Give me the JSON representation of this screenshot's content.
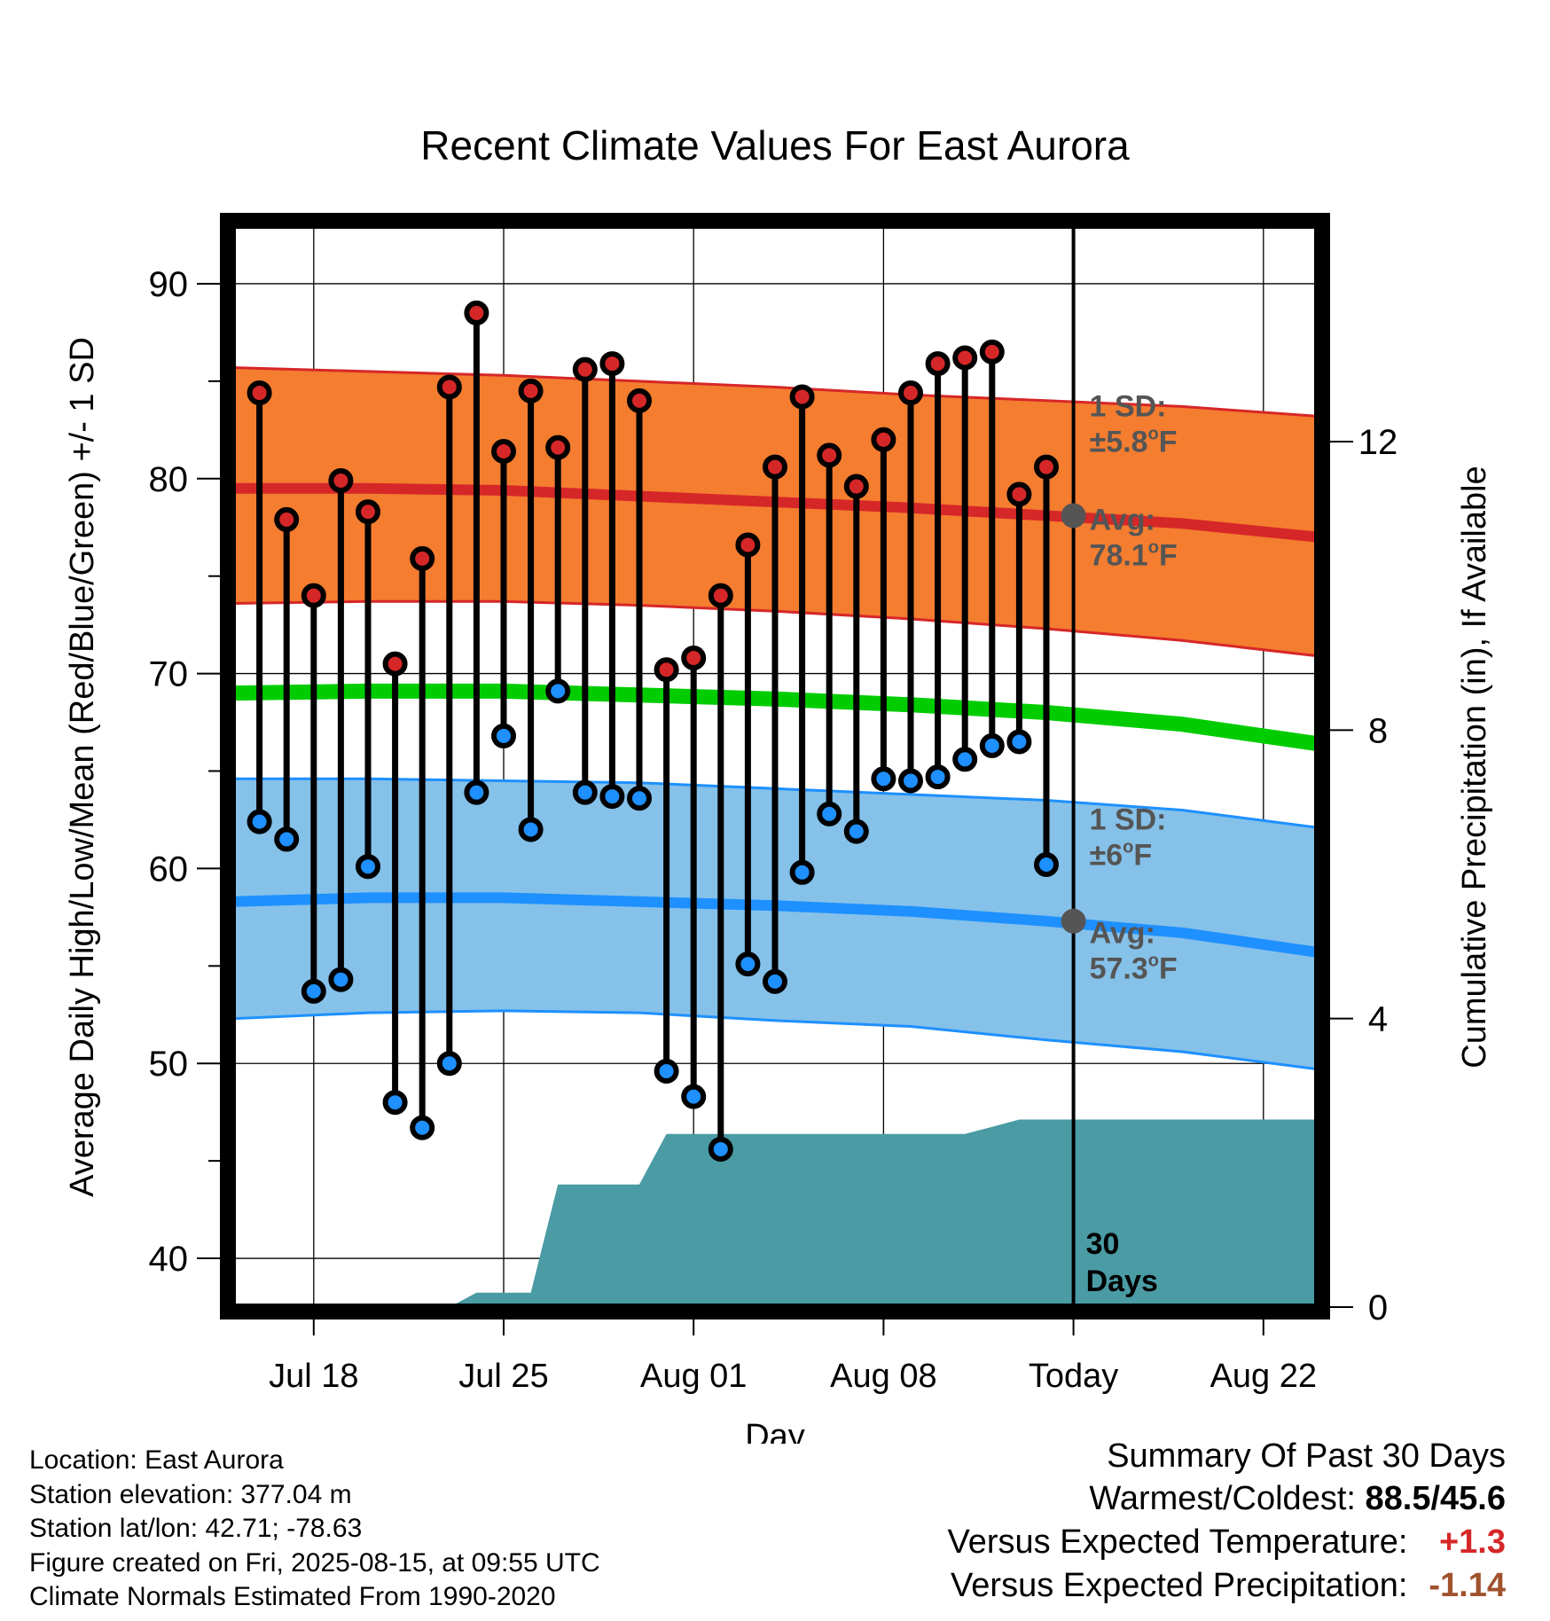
{
  "chart_data": {
    "type": "line",
    "title": "Recent Climate Values For East Aurora",
    "xlabel": "Day",
    "ylabel": "Average Daily High/Low/Mean (Red/Blue/Green) +/- 1 SD",
    "y2label": "Cumulative Precipitation (in), If Available",
    "ylim": [
      37.5,
      93
    ],
    "y2lim": [
      0,
      15
    ],
    "x_ticks": [
      {
        "day": 3,
        "label": "Jul 18"
      },
      {
        "day": 10,
        "label": "Jul 25"
      },
      {
        "day": 17,
        "label": "Aug 01"
      },
      {
        "day": 24,
        "label": "Aug 08"
      },
      {
        "day": 31,
        "label": "Today"
      },
      {
        "day": 38,
        "label": "Aug 22"
      }
    ],
    "x_note": "day 0 = Jul 15",
    "y_ticks": [
      40,
      50,
      60,
      70,
      80,
      90
    ],
    "y2_ticks": [
      0,
      4,
      8,
      12
    ],
    "today_day": 31,
    "days": [
      1,
      2,
      3,
      4,
      5,
      6,
      7,
      8,
      9,
      10,
      11,
      12,
      13,
      14,
      15,
      16,
      17,
      18,
      19,
      20,
      21,
      22,
      23,
      24,
      25,
      26,
      27,
      28,
      29,
      30
    ],
    "daily_high": [
      84.4,
      77.9,
      74.0,
      79.9,
      78.3,
      70.5,
      75.9,
      84.7,
      88.5,
      81.4,
      84.5,
      81.6,
      85.6,
      85.9,
      84.0,
      70.2,
      70.8,
      74.0,
      76.6,
      80.6,
      84.2,
      81.2,
      79.6,
      82.0,
      84.4,
      85.9,
      86.2,
      86.5,
      79.2,
      80.6
    ],
    "daily_low": [
      62.4,
      61.5,
      53.7,
      54.3,
      60.1,
      48.0,
      46.7,
      50.0,
      63.9,
      66.8,
      62.0,
      69.1,
      63.9,
      63.7,
      63.6,
      49.6,
      48.3,
      45.6,
      55.1,
      54.2,
      59.8,
      62.8,
      61.9,
      64.6,
      64.5,
      64.7,
      65.6,
      66.3,
      66.5,
      60.2
    ],
    "normal_high": {
      "days": [
        0,
        5,
        10,
        15,
        20,
        25,
        30,
        35,
        40
      ],
      "mean": [
        79.5,
        79.5,
        79.4,
        79.1,
        78.8,
        78.5,
        78.1,
        77.7,
        77.0
      ],
      "upper": [
        85.7,
        85.5,
        85.3,
        85.0,
        84.7,
        84.3,
        84.0,
        83.7,
        83.2
      ],
      "lower": [
        73.6,
        73.7,
        73.7,
        73.5,
        73.2,
        72.8,
        72.3,
        71.7,
        70.9
      ],
      "sd_label": "1 SD:",
      "sd_value": "±5.8",
      "avg_label": "Avg:",
      "avg_value": "78.1",
      "unit": "F",
      "color": "#d62728",
      "band_color": "#f47d30"
    },
    "normal_mean": {
      "days": [
        0,
        5,
        10,
        15,
        20,
        25,
        30,
        35,
        40
      ],
      "values": [
        69.0,
        69.1,
        69.1,
        68.9,
        68.7,
        68.4,
        68.0,
        67.4,
        66.4
      ],
      "color": "#00cc00"
    },
    "normal_low": {
      "days": [
        0,
        5,
        10,
        15,
        20,
        25,
        30,
        35,
        40
      ],
      "mean": [
        58.3,
        58.5,
        58.5,
        58.3,
        58.1,
        57.8,
        57.3,
        56.7,
        55.7
      ],
      "upper": [
        64.6,
        64.6,
        64.5,
        64.4,
        64.1,
        63.8,
        63.5,
        63.0,
        62.1
      ],
      "lower": [
        52.3,
        52.6,
        52.7,
        52.6,
        52.2,
        51.9,
        51.2,
        50.6,
        49.7
      ],
      "sd_label": "1 SD:",
      "sd_value": "±6",
      "avg_label": "Avg:",
      "avg_value": "57.3",
      "unit": "F",
      "color": "#1e90ff",
      "band_color": "#85c1e9"
    },
    "precip": {
      "days": [
        8,
        9,
        10,
        11,
        12,
        14,
        15,
        16,
        20,
        25,
        26,
        27,
        28,
        29,
        30,
        31,
        40
      ],
      "values": [
        0.0,
        0.2,
        0.2,
        0.2,
        1.7,
        1.7,
        1.7,
        2.4,
        2.4,
        2.4,
        2.4,
        2.4,
        2.5,
        2.6,
        2.6,
        2.6,
        2.6
      ],
      "color": "#4a9ba4",
      "label_line1": "30",
      "label_line2": "Days"
    }
  },
  "station_info": {
    "location": "Location: East Aurora",
    "elevation": "Station elevation: 377.04 m",
    "latlon": "Station lat/lon: 42.71; -78.63",
    "created": "Figure created on Fri, 2025-08-15, at 09:55 UTC",
    "normals": "Climate Normals Estimated From 1990-2020"
  },
  "summary": {
    "title": "Summary Of Past 30 Days",
    "warm_cold_label": "Warmest/Coldest:",
    "warm_cold_value": "88.5/45.6",
    "temp_label": "Versus Expected Temperature:",
    "temp_value": "+1.3",
    "temp_color": "#d62728",
    "precip_label": "Versus Expected Precipitation:",
    "precip_value": "-1.14",
    "precip_color": "#a0522d"
  }
}
